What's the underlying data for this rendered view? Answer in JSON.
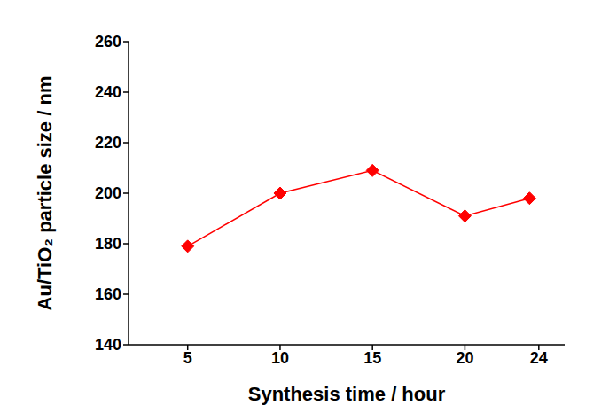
{
  "chart_data": {
    "type": "line",
    "x_label": "Synthesis time / hour",
    "y_label": "Au/TiO₂ particle size / nm",
    "x": [
      5,
      10,
      15,
      20,
      23.5
    ],
    "values": [
      179,
      200,
      209,
      191,
      198
    ],
    "color": "#ff0000",
    "marker": "diamond",
    "xlim": [
      1.8,
      25.4
    ],
    "xticks": [
      5,
      10,
      15,
      20,
      24
    ],
    "ylim": [
      140,
      260
    ],
    "yticks": [
      140,
      160,
      180,
      200,
      220,
      240,
      260
    ],
    "grid": false
  }
}
